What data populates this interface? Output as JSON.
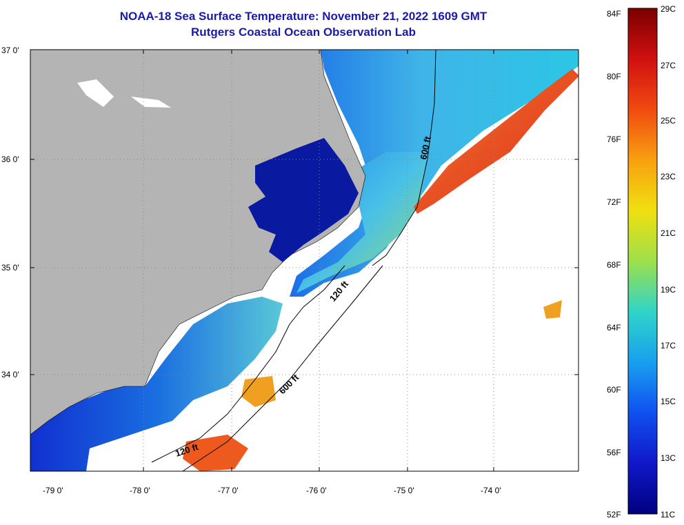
{
  "title": {
    "line1": "NOAA-18 Sea Surface Temperature:  November 21, 2022 1609 GMT",
    "line2": "Rutgers Coastal Ocean Observation Lab"
  },
  "axes": {
    "lat_labels": [
      "37 0'",
      "36 0'",
      "35 0'",
      "34 0'"
    ],
    "lon_labels": [
      "-79 0'",
      "-78 0'",
      "-77 0'",
      "-76 0'",
      "-75 0'",
      "-74 0'"
    ]
  },
  "isobaths": {
    "label_120_a": "120 ft",
    "label_120_b": "120 ft",
    "label_600_a": "600 ft",
    "label_600_b": "600 ft"
  },
  "colorbar": {
    "fahrenheit": [
      "84F",
      "80F",
      "76F",
      "72F",
      "68F",
      "64F",
      "60F",
      "56F",
      "52F"
    ],
    "celsius": [
      "29C",
      "27C",
      "25C",
      "23C",
      "21C",
      "19C",
      "17C",
      "15C",
      "13C",
      "11C"
    ]
  },
  "colors": {
    "land": "#b4b4b4",
    "title": "#1a1aa8",
    "cold": "#0a1aa0",
    "warm": "#e8321e"
  }
}
